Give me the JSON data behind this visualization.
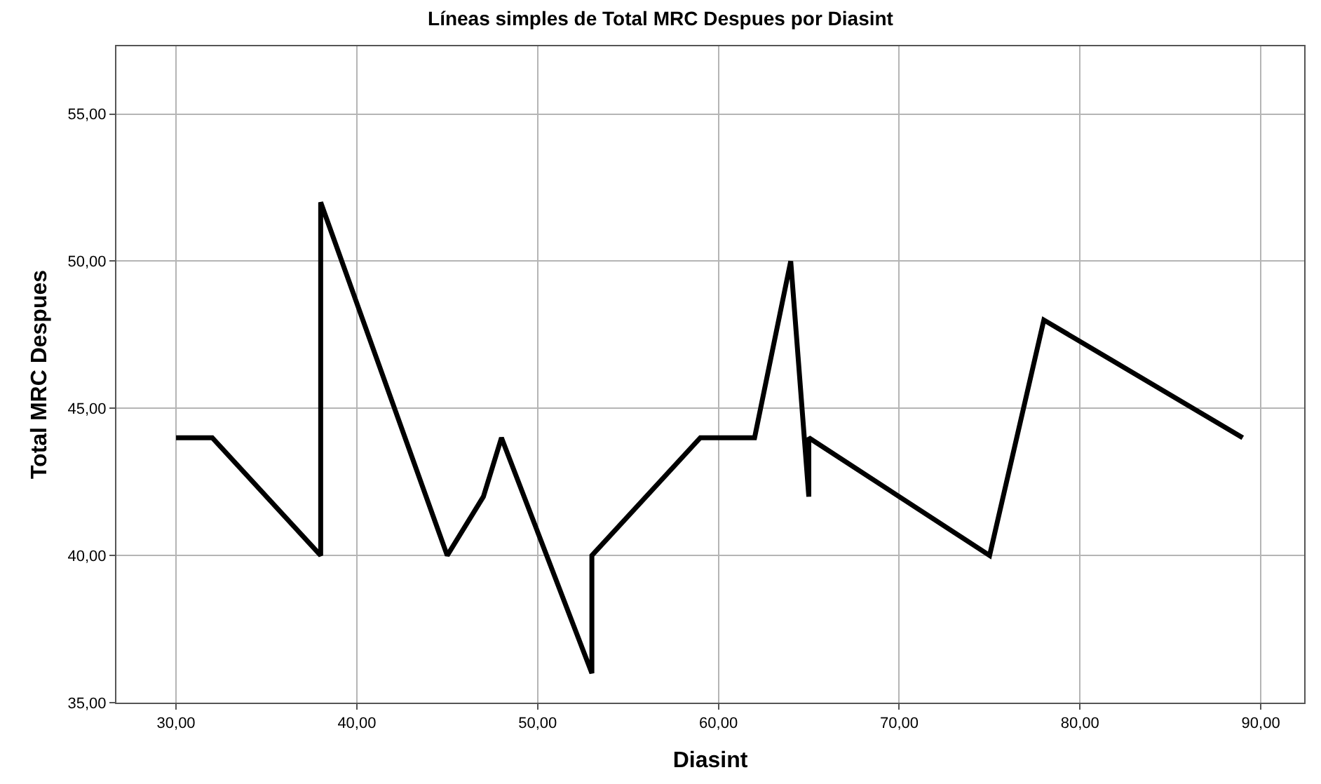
{
  "chart_data": {
    "type": "line",
    "title": "Líneas simples de Total MRC Despues por Diasint",
    "xlabel": "Diasint",
    "ylabel": "Total MRC Despues",
    "x": [
      30,
      32,
      38,
      38,
      45,
      47,
      48,
      53,
      53,
      59,
      62,
      64,
      65,
      65,
      75,
      78,
      89
    ],
    "values": [
      44,
      44,
      40,
      52,
      40,
      42,
      44,
      36,
      40,
      44,
      44,
      50,
      42,
      44,
      40,
      48,
      44
    ],
    "color": "#000000",
    "xlim": [
      26.7,
      92.4
    ],
    "xticks": [
      {
        "value": 30,
        "label": "30,00"
      },
      {
        "value": 40,
        "label": "40,00"
      },
      {
        "value": 50,
        "label": "50,00"
      },
      {
        "value": 60,
        "label": "60,00"
      },
      {
        "value": 70,
        "label": "70,00"
      },
      {
        "value": 80,
        "label": "80,00"
      },
      {
        "value": 90,
        "label": "90,00"
      }
    ],
    "ylim": [
      35,
      57.3
    ],
    "yticks": [
      {
        "value": 35,
        "label": "35,00"
      },
      {
        "value": 40,
        "label": "40,00"
      },
      {
        "value": 45,
        "label": "45,00"
      },
      {
        "value": 50,
        "label": "50,00"
      },
      {
        "value": 55,
        "label": "55,00"
      }
    ],
    "grid": true,
    "marker": "none",
    "line_style": "solid"
  }
}
